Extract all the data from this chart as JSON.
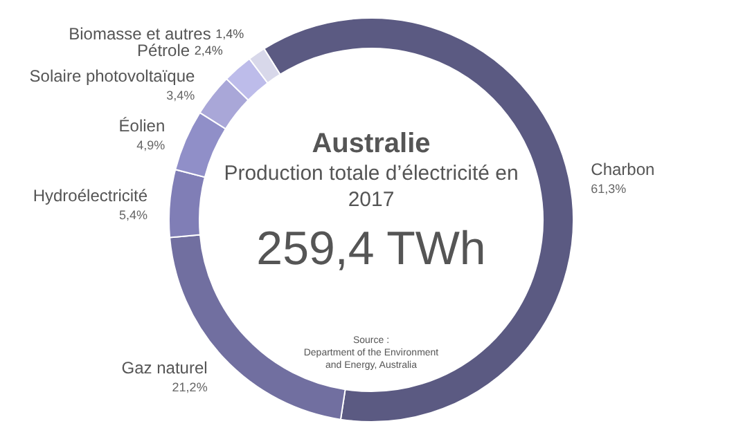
{
  "chart_data": {
    "type": "donut",
    "title": "Australie",
    "subtitle": "Production totale d’électricité en 2017",
    "annotations": [
      "259,4 TWh",
      "Source :\nDepartment of the Environment\nand Energy, Australia"
    ],
    "categories": [
      "Charbon",
      "Gaz naturel",
      "Hydroélectricité",
      "Éolien",
      "Solaire photovoltaïque",
      "Pétrole",
      "Biomasse et autres"
    ],
    "values": [
      61.3,
      21.2,
      5.4,
      4.9,
      3.4,
      2.4,
      1.4
    ],
    "value_labels": [
      "61,3%",
      "21,2%",
      "5,4%",
      "4,9%",
      "3,4%",
      "2,4%",
      "1,4%"
    ],
    "colors": [
      "#5b5a82",
      "#716fa0",
      "#807eb6",
      "#908fc8",
      "#a9a7d8",
      "#bdbcea",
      "#d8d8ea"
    ]
  }
}
